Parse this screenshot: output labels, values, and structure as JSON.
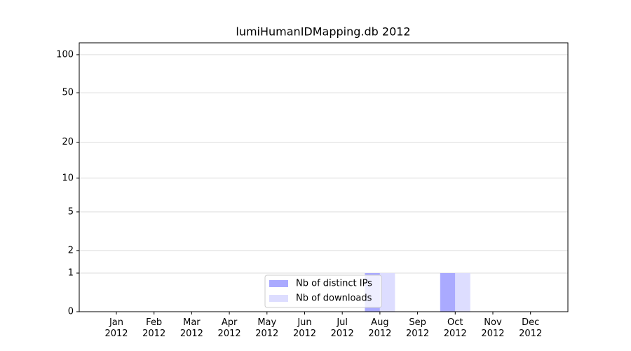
{
  "chart_data": {
    "type": "bar",
    "title": "lumiHumanIDMapping.db 2012",
    "categories": [
      "Jan\n2012",
      "Feb\n2012",
      "Mar\n2012",
      "Apr\n2012",
      "May\n2012",
      "Jun\n2012",
      "Jul\n2012",
      "Aug\n2012",
      "Sep\n2012",
      "Oct\n2012",
      "Nov\n2012",
      "Dec\n2012"
    ],
    "series": [
      {
        "name": "Nb of distinct IPs",
        "color": "#aaaaff",
        "values": [
          0,
          0,
          0,
          0,
          0,
          0,
          0,
          1,
          0,
          1,
          0,
          0
        ]
      },
      {
        "name": "Nb of downloads",
        "color": "#ddddff",
        "values": [
          0,
          0,
          0,
          0,
          0,
          0,
          0,
          1,
          0,
          1,
          0,
          0
        ]
      }
    ],
    "yscale": "log1p",
    "ylim": [
      0,
      124
    ],
    "yticks": [
      0,
      1,
      2,
      5,
      10,
      20,
      50,
      100
    ],
    "grid": true,
    "legend": "lower center"
  }
}
